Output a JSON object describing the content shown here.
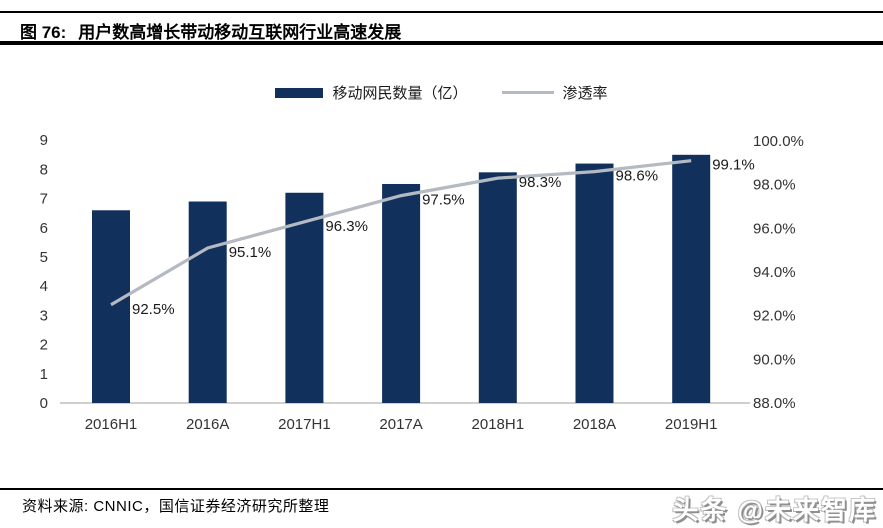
{
  "figure": {
    "label": "图 76:",
    "title": "用户数高增长带动移动互联网行业高速发展"
  },
  "legend": [
    {
      "label": "移动网民数量（亿）",
      "swatch": "bar-swatch",
      "color": "#12305C"
    },
    {
      "label": "渗透率",
      "swatch": "line-swatch",
      "color": "#B4BAC2"
    }
  ],
  "chart_data": {
    "type": "bar",
    "title": "用户数高增长带动移动互联网行业高速发展",
    "categories": [
      "2016H1",
      "2016A",
      "2017H1",
      "2017A",
      "2018H1",
      "2018A",
      "2019H1"
    ],
    "series": [
      {
        "name": "移动网民数量（亿）",
        "type": "bar",
        "axis": "left",
        "values": [
          6.6,
          6.9,
          7.2,
          7.5,
          7.9,
          8.2,
          8.5
        ],
        "color": "#12305C"
      },
      {
        "name": "渗透率",
        "type": "line",
        "axis": "right",
        "values": [
          92.5,
          95.1,
          96.3,
          97.5,
          98.3,
          98.6,
          99.1
        ],
        "labels": [
          "92.5%",
          "95.1%",
          "96.3%",
          "97.5%",
          "98.3%",
          "98.6%",
          "99.1%"
        ],
        "color": "#B4BAC2"
      }
    ],
    "left_axis": {
      "min": 0,
      "max": 9,
      "step": 1,
      "ticks": [
        0,
        1,
        2,
        3,
        4,
        5,
        6,
        7,
        8,
        9
      ]
    },
    "right_axis": {
      "min": 88,
      "max": 100,
      "step": 2,
      "tick_labels": [
        "88.0%",
        "90.0%",
        "92.0%",
        "94.0%",
        "96.0%",
        "98.0%",
        "100.0%"
      ]
    },
    "grid": false,
    "legend_position": "top"
  },
  "footer": {
    "source": "资料来源: CNNIC，国信证券经济研究所整理"
  },
  "watermark": "头条 @未来智库"
}
